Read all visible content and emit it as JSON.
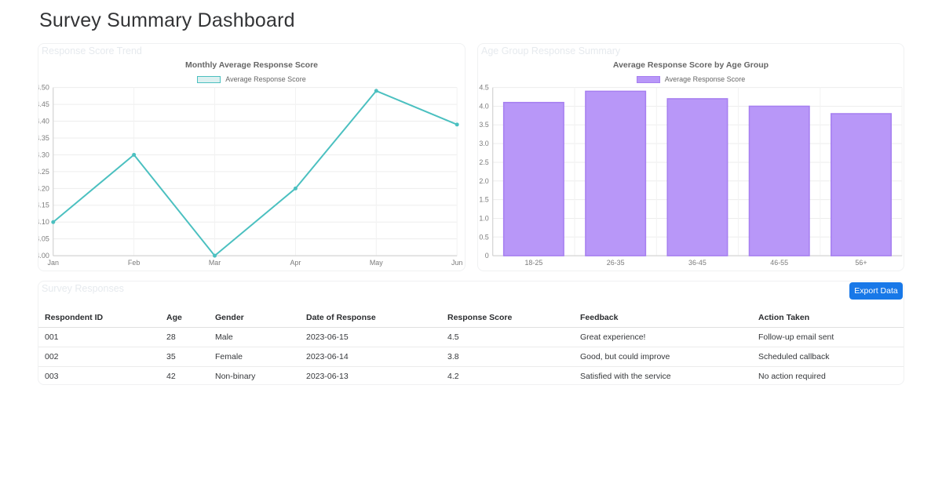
{
  "header": {
    "title": "Survey Summary Dashboard"
  },
  "panels": [
    {
      "panel_title": "Response Score Trend"
    },
    {
      "panel_title": "Age Group Response Summary"
    }
  ],
  "chart_data": [
    {
      "type": "line",
      "title": "Monthly Average Response Score",
      "legend": [
        "Average Response Score"
      ],
      "legend_position": "top",
      "categories": [
        "Jan",
        "Feb",
        "Mar",
        "Apr",
        "May",
        "Jun"
      ],
      "values": [
        4.1,
        4.3,
        4.0,
        4.2,
        4.49,
        4.39
      ],
      "xlabel": "",
      "ylabel": "",
      "ylim": [
        4.0,
        4.5
      ],
      "ytick_step": 0.05,
      "grid": true
    },
    {
      "type": "bar",
      "title": "Average Response Score by Age Group",
      "legend": [
        "Average Response Score"
      ],
      "legend_position": "top",
      "categories": [
        "18-25",
        "26-35",
        "36-45",
        "46-55",
        "56+"
      ],
      "values": [
        4.1,
        4.4,
        4.2,
        4.0,
        3.8
      ],
      "xlabel": "",
      "ylabel": "",
      "ylim": [
        0,
        4.5
      ],
      "ytick_step": 0.5,
      "grid": true
    }
  ],
  "table_section": {
    "section_title": "Survey Responses",
    "export_button_label": "Export Data",
    "columns": [
      "Respondent ID",
      "Age",
      "Gender",
      "Date of Response",
      "Response Score",
      "Feedback",
      "Action Taken"
    ],
    "rows": [
      [
        "001",
        "28",
        "Male",
        "2023-06-15",
        "4.5",
        "Great experience!",
        "Follow-up email sent"
      ],
      [
        "002",
        "35",
        "Female",
        "2023-06-14",
        "3.8",
        "Good, but could improve",
        "Scheduled callback"
      ],
      [
        "003",
        "42",
        "Non-binary",
        "2023-06-13",
        "4.2",
        "Satisfied with the service",
        "No action required"
      ]
    ]
  },
  "colors": {
    "accent_blue": "#1878e8",
    "line_teal": "#4bc0c0",
    "line_legend_fill": "#ddf0f0",
    "bar_fill": "#b897f8",
    "bar_border": "#a67ff0",
    "gridline": "#ededed",
    "axis_line": "#cccccc",
    "tick_text": "#7b7b7b"
  }
}
